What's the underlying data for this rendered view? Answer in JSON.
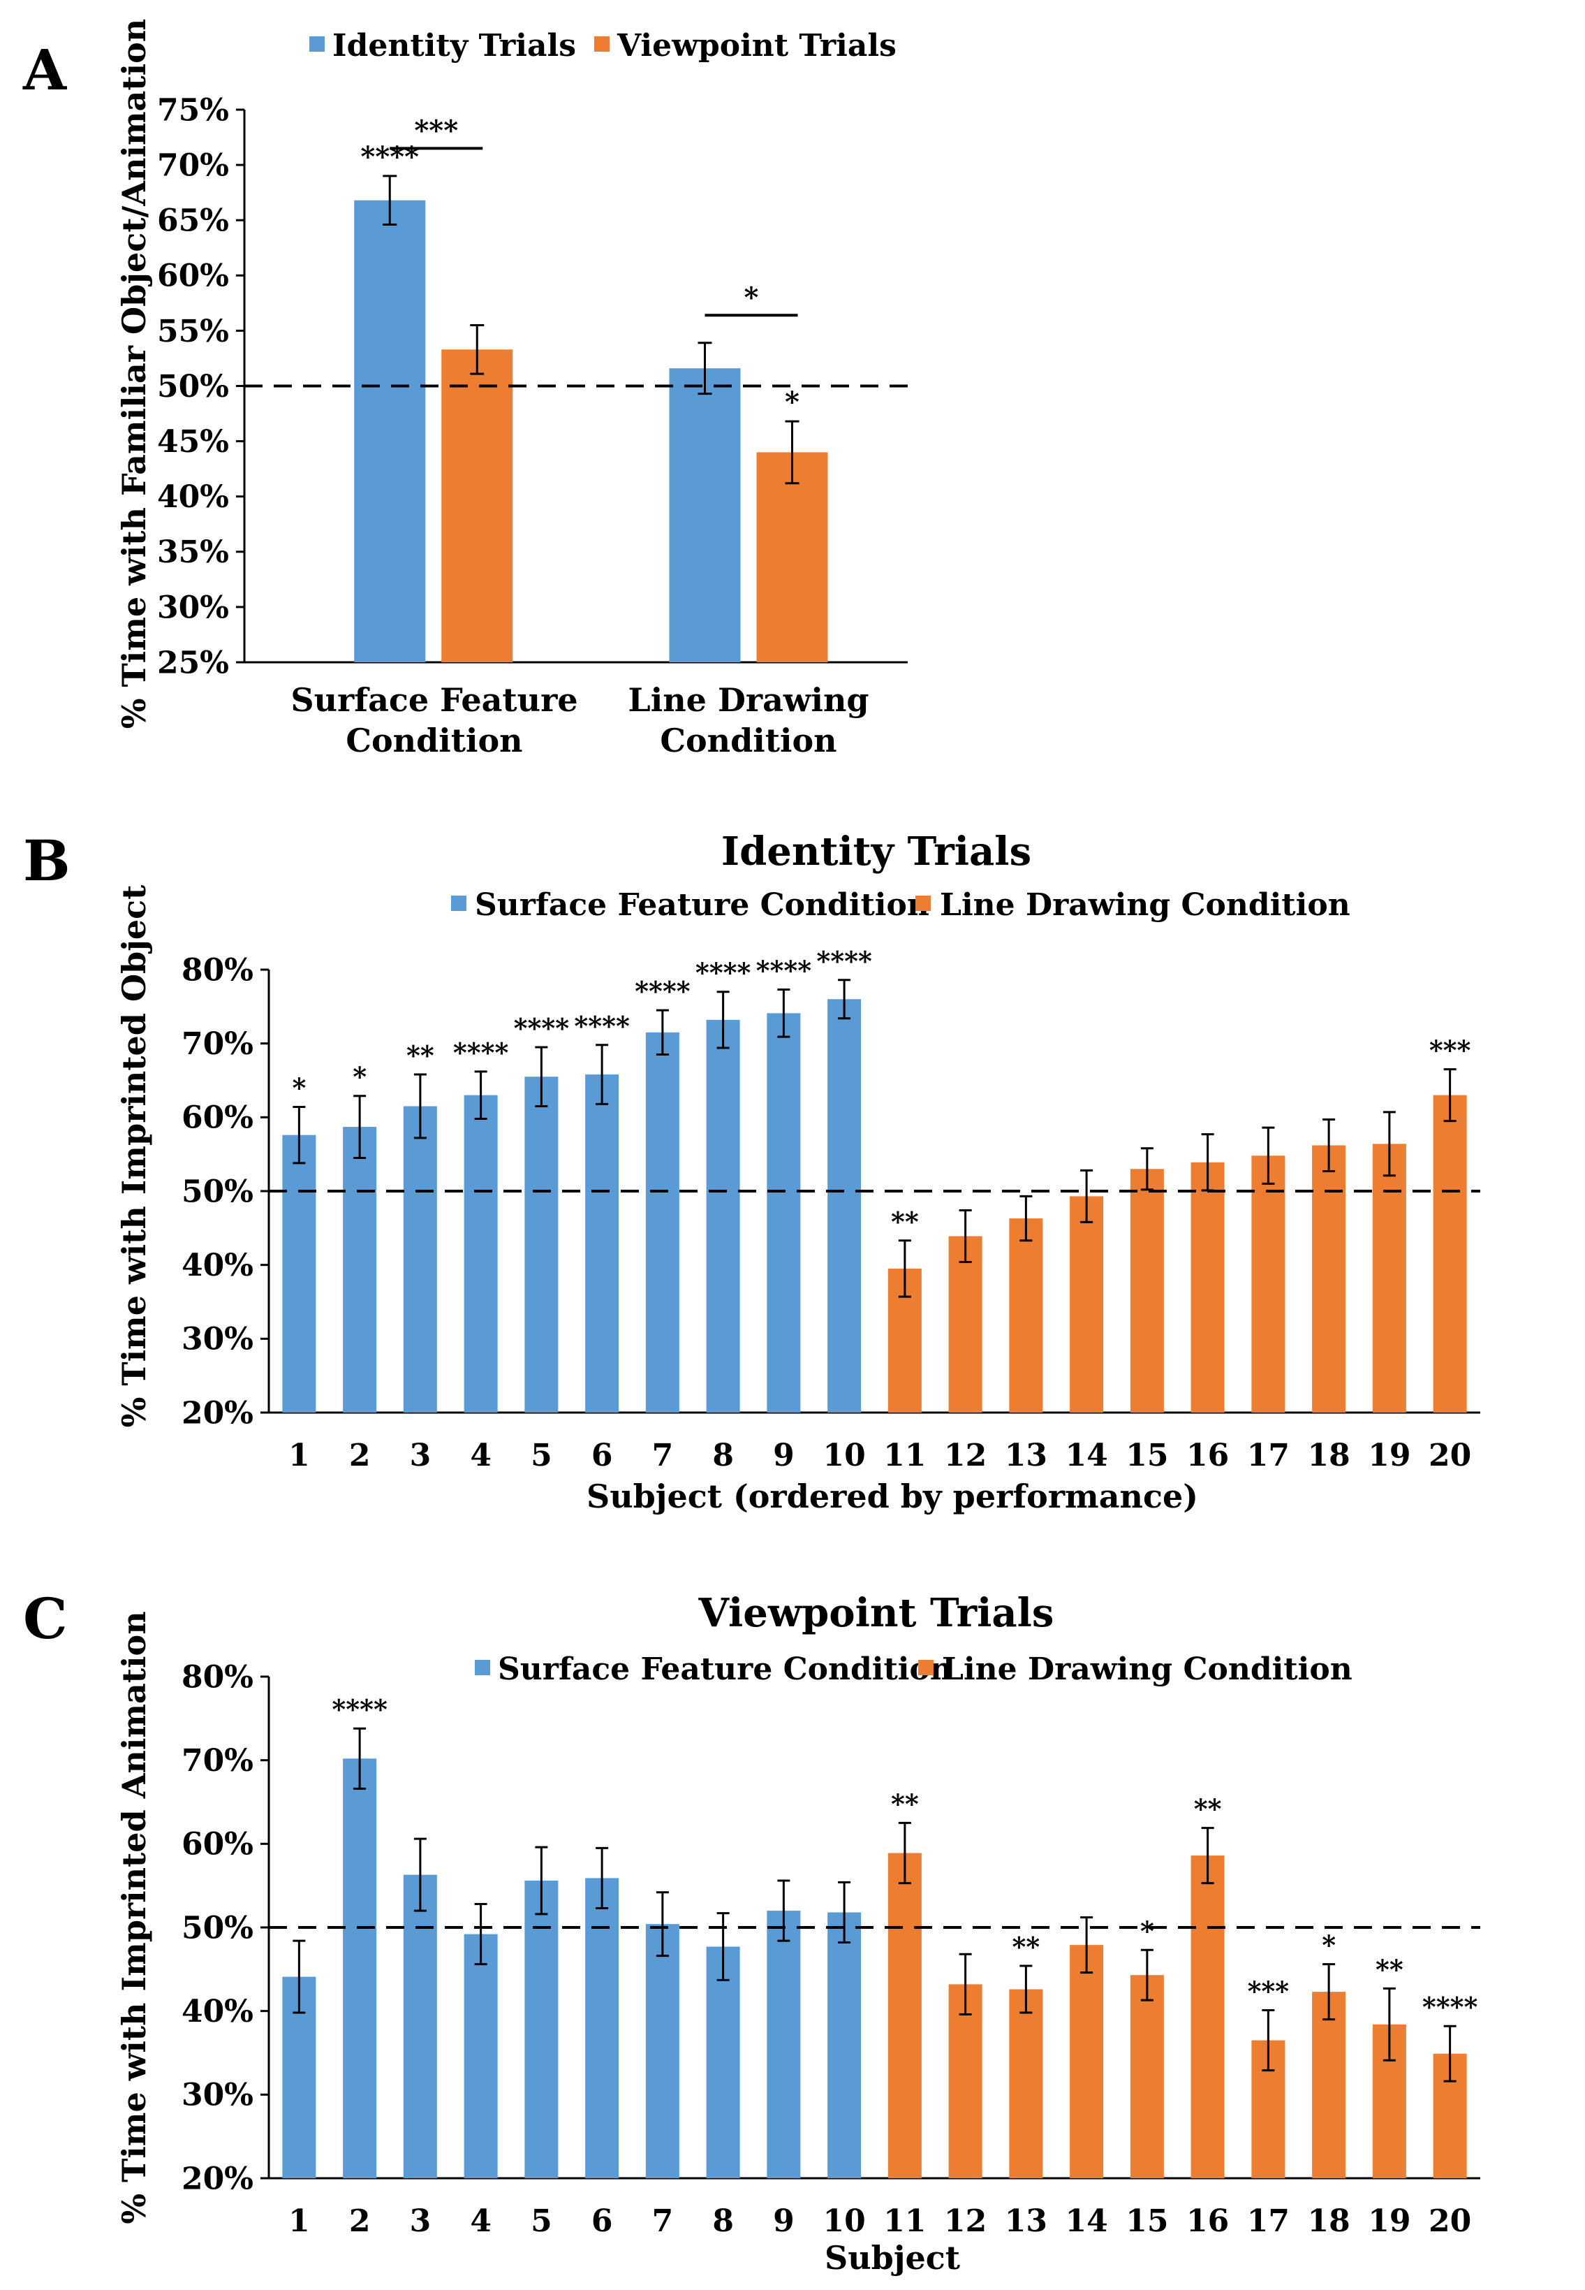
{
  "colors": {
    "blue": "#5b9bd5",
    "orange": "#ed7d31",
    "axis": "#000000"
  },
  "chart_data": [
    {
      "type": "bar",
      "panel_label": "A",
      "title": "",
      "ylabel": "% Time with Familiar Object/Animation",
      "xlabel": "",
      "ylim": [
        25,
        75
      ],
      "yticks": [
        25,
        30,
        35,
        40,
        45,
        50,
        55,
        60,
        65,
        70,
        75
      ],
      "reference_line": 50,
      "legend": [
        "Identity Trials",
        "Viewpoint Trials"
      ],
      "categories": [
        [
          "Surface Feature",
          "Condition"
        ],
        [
          "Line Drawing",
          "Condition"
        ]
      ],
      "series": [
        {
          "name": "Identity Trials",
          "color": "blue",
          "values": [
            66.8,
            51.6
          ],
          "errors": [
            2.2,
            2.3
          ],
          "sig": [
            "****",
            ""
          ]
        },
        {
          "name": "Viewpoint Trials",
          "color": "orange",
          "values": [
            53.3,
            44.0
          ],
          "errors": [
            2.2,
            2.8
          ],
          "sig": [
            "",
            "*"
          ]
        }
      ],
      "brackets": [
        {
          "category": 0,
          "label": "***",
          "value": 71.5
        },
        {
          "category": 1,
          "label": "*",
          "value": 56.4
        }
      ]
    },
    {
      "type": "bar",
      "panel_label": "B",
      "title": "Identity Trials",
      "ylabel": "% Time with Imprinted Object",
      "xlabel": "Subject (ordered by performance)",
      "ylim": [
        20,
        80
      ],
      "yticks": [
        20,
        30,
        40,
        50,
        60,
        70,
        80
      ],
      "reference_line": 50,
      "legend": [
        "Surface Feature Condition",
        "Line Drawing Condition"
      ],
      "categories": [
        "1",
        "2",
        "3",
        "4",
        "5",
        "6",
        "7",
        "8",
        "9",
        "10",
        "11",
        "12",
        "13",
        "14",
        "15",
        "16",
        "17",
        "18",
        "19",
        "20"
      ],
      "colors": [
        "blue",
        "blue",
        "blue",
        "blue",
        "blue",
        "blue",
        "blue",
        "blue",
        "blue",
        "blue",
        "orange",
        "orange",
        "orange",
        "orange",
        "orange",
        "orange",
        "orange",
        "orange",
        "orange",
        "orange"
      ],
      "values": [
        57.6,
        58.7,
        61.5,
        63.0,
        65.5,
        65.8,
        71.5,
        73.2,
        74.1,
        76.0,
        39.5,
        43.9,
        46.3,
        49.3,
        53.0,
        53.9,
        54.8,
        56.2,
        56.4,
        63.0
      ],
      "errors": [
        3.8,
        4.2,
        4.3,
        3.2,
        4.0,
        4.0,
        3.0,
        3.8,
        3.2,
        2.6,
        3.8,
        3.5,
        3.0,
        3.5,
        2.8,
        3.8,
        3.8,
        3.5,
        4.3,
        3.5
      ],
      "sig": [
        "*",
        "*",
        "**",
        "****",
        "****",
        "****",
        "****",
        "****",
        "****",
        "****",
        "**",
        "",
        "",
        "",
        "",
        "",
        "",
        "",
        "",
        "***"
      ]
    },
    {
      "type": "bar",
      "panel_label": "C",
      "title": "Viewpoint Trials",
      "ylabel": "% Time with Imprinted Animation",
      "xlabel": "Subject",
      "ylim": [
        20,
        80
      ],
      "yticks": [
        20,
        30,
        40,
        50,
        60,
        70,
        80
      ],
      "reference_line": 50,
      "legend": [
        "Surface Feature Condition",
        "Line Drawing Condition"
      ],
      "categories": [
        "1",
        "2",
        "3",
        "4",
        "5",
        "6",
        "7",
        "8",
        "9",
        "10",
        "11",
        "12",
        "13",
        "14",
        "15",
        "16",
        "17",
        "18",
        "19",
        "20"
      ],
      "colors": [
        "blue",
        "blue",
        "blue",
        "blue",
        "blue",
        "blue",
        "blue",
        "blue",
        "blue",
        "blue",
        "orange",
        "orange",
        "orange",
        "orange",
        "orange",
        "orange",
        "orange",
        "orange",
        "orange",
        "orange"
      ],
      "values": [
        44.1,
        70.2,
        56.3,
        49.2,
        55.6,
        55.9,
        50.4,
        47.7,
        52.0,
        51.8,
        58.9,
        43.2,
        42.6,
        47.9,
        44.3,
        58.6,
        36.5,
        42.3,
        38.4,
        34.9
      ],
      "errors": [
        4.3,
        3.6,
        4.3,
        3.6,
        4.0,
        3.6,
        3.8,
        4.0,
        3.6,
        3.6,
        3.6,
        3.6,
        2.8,
        3.3,
        3.0,
        3.3,
        3.6,
        3.3,
        4.3,
        3.3
      ],
      "sig": [
        "",
        "****",
        "",
        "",
        "",
        "",
        "",
        "",
        "",
        "",
        "**",
        "",
        "**",
        "",
        "*",
        "**",
        "***",
        "*",
        "**",
        "****"
      ]
    }
  ]
}
